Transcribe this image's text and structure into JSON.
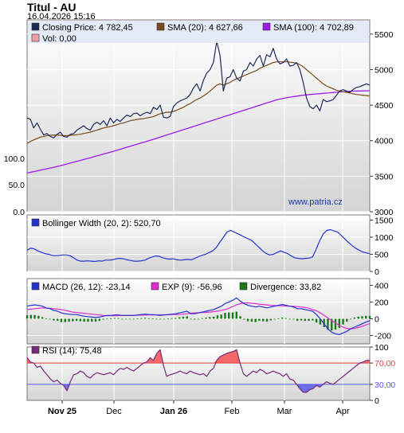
{
  "title": "Titul - AU",
  "timestamp": "16.04.2026 15:16",
  "watermark": "www.patria.cz",
  "colors": {
    "close": "#1a2a5a",
    "sma20": "#7a4a1a",
    "sma100": "#9b1ce8",
    "bollinger": "#2233cc",
    "macd": "#2233cc",
    "exp": "#e02ccf",
    "divergence": "#1a7a1a",
    "rsi": "#7a2a7a",
    "rsi_upper_fill": "#f05050",
    "rsi_lower_fill": "#5a5aee"
  },
  "chart_data": [
    {
      "type": "line",
      "name": "price",
      "x_labels": [
        "Nov 25",
        "Dec",
        "Jan 26",
        "Feb",
        "Mar",
        "Apr"
      ],
      "y_right_ticks": [
        "3000",
        "3500",
        "4000",
        "4500",
        "5000",
        "5500"
      ],
      "y_left_ticks": [
        "0.0",
        "50.0",
        "100.0"
      ],
      "ylim": [
        3000,
        5700
      ],
      "legend": {
        "close": "Closing Price: 4 782,45",
        "sma20": "SMA (20): 4 627,66",
        "sma100": "SMA (100): 4 702,89",
        "vol": "Vol: 0,00"
      },
      "series": [
        {
          "name": "Closing Price",
          "values": [
            4320,
            4300,
            4180,
            4250,
            4160,
            4080,
            4100,
            4060,
            4040,
            4090,
            4120,
            4060,
            4050,
            4090,
            4100,
            4150,
            4180,
            4210,
            4170,
            4150,
            4230,
            4260,
            4230,
            4280,
            4210,
            4320,
            4250,
            4300,
            4270,
            4320,
            4360,
            4340,
            4380,
            4390,
            4350,
            4380,
            4400,
            4380,
            4470,
            4440,
            4500,
            4330,
            4320,
            4340,
            4480,
            4530,
            4560,
            4580,
            4600,
            4650,
            4740,
            4800,
            4700,
            4850,
            4950,
            5000,
            5100,
            5400,
            5200,
            4700,
            4880,
            4900,
            5000,
            4880,
            4840,
            4980,
            5000,
            5100,
            5050,
            5150,
            5200,
            5050,
            5210,
            5180,
            5300,
            5150,
            5080,
            5100,
            5150,
            5050,
            5060,
            5100,
            5000,
            4820,
            4600,
            4480,
            4450,
            4500,
            4420,
            4580,
            4550,
            4560,
            4580,
            4640,
            4700,
            4720,
            4700,
            4680,
            4720,
            4750,
            4760,
            4780,
            4800,
            4782
          ]
        },
        {
          "name": "SMA (20)",
          "values": [
            3960,
            3990,
            4010,
            4030,
            4050,
            4060,
            4070,
            4075,
            4080,
            4080,
            4075,
            4070,
            4070,
            4075,
            4080,
            4085,
            4090,
            4100,
            4110,
            4120,
            4135,
            4150,
            4165,
            4180,
            4190,
            4200,
            4210,
            4225,
            4240,
            4250,
            4265,
            4280,
            4290,
            4300,
            4305,
            4310,
            4320,
            4330,
            4340,
            4360,
            4380,
            4390,
            4400,
            4400,
            4410,
            4430,
            4450,
            4470,
            4500,
            4520,
            4550,
            4580,
            4600,
            4630,
            4660,
            4700,
            4740,
            4780,
            4800,
            4780,
            4800,
            4820,
            4850,
            4870,
            4890,
            4910,
            4930,
            4950,
            4970,
            4990,
            5020,
            5040,
            5060,
            5080,
            5100,
            5110,
            5110,
            5110,
            5110,
            5105,
            5100,
            5090,
            5070,
            5040,
            5000,
            4960,
            4920,
            4880,
            4840,
            4800,
            4770,
            4750,
            4730,
            4710,
            4700,
            4690,
            4680,
            4670,
            4660,
            4650,
            4645,
            4640,
            4635,
            4628
          ]
        },
        {
          "name": "SMA (100)",
          "values": [
            3545,
            3555,
            3565,
            3575,
            3585,
            3595,
            3605,
            3615,
            3625,
            3635,
            3648,
            3660,
            3672,
            3685,
            3698,
            3710,
            3722,
            3735,
            3748,
            3760,
            3773,
            3786,
            3799,
            3812,
            3825,
            3838,
            3852,
            3866,
            3880,
            3894,
            3908,
            3922,
            3936,
            3950,
            3964,
            3978,
            3992,
            4006,
            4020,
            4035,
            4050,
            4065,
            4080,
            4095,
            4110,
            4125,
            4140,
            4155,
            4170,
            4185,
            4200,
            4215,
            4230,
            4245,
            4260,
            4275,
            4290,
            4305,
            4320,
            4335,
            4350,
            4365,
            4380,
            4395,
            4410,
            4425,
            4440,
            4455,
            4470,
            4485,
            4500,
            4515,
            4530,
            4545,
            4560,
            4575,
            4585,
            4595,
            4605,
            4612,
            4620,
            4627,
            4634,
            4640,
            4645,
            4650,
            4654,
            4658,
            4662,
            4666,
            4670,
            4674,
            4678,
            4682,
            4686,
            4689,
            4692,
            4695,
            4697,
            4699,
            4700,
            4701,
            4702,
            4703
          ]
        }
      ]
    },
    {
      "type": "line",
      "name": "bollinger",
      "legend": "Bollinger Width (20, 2): 520,70",
      "y_ticks": [
        "0",
        "500",
        "1000",
        "1500"
      ],
      "ylim": [
        0,
        1650
      ],
      "series": [
        {
          "name": "Bollinger Width (20, 2)",
          "values": [
            620,
            680,
            660,
            600,
            560,
            520,
            500,
            470,
            460,
            470,
            480,
            480,
            460,
            400,
            330,
            300,
            300,
            310,
            300,
            290,
            310,
            300,
            330,
            330,
            340,
            370,
            380,
            370,
            340,
            320,
            300,
            300,
            310,
            330,
            380,
            420,
            450,
            440,
            400,
            370,
            360,
            370,
            340,
            330,
            340,
            350,
            340,
            380,
            430,
            470,
            500,
            550,
            600,
            700,
            850,
            1000,
            1150,
            1200,
            1150,
            1100,
            1050,
            1000,
            950,
            900,
            800,
            700,
            600,
            520,
            480,
            500,
            550,
            600,
            560,
            520,
            450,
            400,
            380,
            370,
            380,
            390,
            420,
            650,
            900,
            1100,
            1200,
            1220,
            1180,
            1150,
            1050,
            950,
            850,
            760,
            680,
            620,
            570,
            540,
            520
          ]
        }
      ]
    },
    {
      "type": "line",
      "name": "macd",
      "legend": {
        "macd": "MACD (26, 12): -23,14",
        "exp": "EXP (9): -56,96",
        "div": "Divergence: 33,82"
      },
      "y_ticks": [
        "-200",
        "0",
        "200",
        "400"
      ],
      "ylim": [
        -300,
        480
      ],
      "series": [
        {
          "name": "MACD (26, 12)",
          "values": [
            150,
            160,
            165,
            160,
            150,
            130,
            120,
            100,
            90,
            70,
            60,
            55,
            50,
            50,
            40,
            30,
            25,
            20,
            15,
            20,
            30,
            40,
            40,
            45,
            45,
            40,
            40,
            40,
            40,
            45,
            50,
            55,
            50,
            50,
            45,
            40,
            45,
            50,
            55,
            60,
            70,
            80,
            90,
            60,
            60,
            70,
            80,
            90,
            100,
            110,
            130,
            150,
            180,
            200,
            220,
            250,
            210,
            180,
            160,
            150,
            140,
            150,
            140,
            130,
            140,
            150,
            160,
            170,
            160,
            150,
            140,
            120,
            120,
            110,
            100,
            90,
            50,
            0,
            -60,
            -120,
            -160,
            -180,
            -190,
            -170,
            -150,
            -120,
            -100,
            -80,
            -60,
            -40,
            -23
          ]
        },
        {
          "name": "EXP (9)",
          "values": [
            110,
            115,
            120,
            125,
            130,
            128,
            125,
            120,
            115,
            110,
            100,
            90,
            80,
            75,
            70,
            65,
            60,
            55,
            50,
            45,
            40,
            38,
            37,
            36,
            38,
            40,
            40,
            40,
            41,
            42,
            43,
            44,
            45,
            46,
            47,
            47,
            47,
            48,
            49,
            50,
            52,
            55,
            60,
            65,
            70,
            72,
            74,
            76,
            80,
            85,
            90,
            100,
            110,
            125,
            145,
            165,
            180,
            190,
            190,
            185,
            180,
            175,
            170,
            165,
            160,
            158,
            156,
            155,
            152,
            150,
            148,
            145,
            140,
            135,
            125,
            110,
            95,
            70,
            40,
            10,
            -20,
            -50,
            -80,
            -100,
            -115,
            -120,
            -115,
            -105,
            -90,
            -75,
            -57
          ]
        },
        {
          "name": "Divergence",
          "values": [
            40,
            45,
            45,
            35,
            20,
            2,
            -5,
            -20,
            -25,
            -40,
            -40,
            -35,
            -30,
            -25,
            -30,
            -35,
            -35,
            -35,
            -35,
            -25,
            -10,
            2,
            3,
            9,
            7,
            0,
            0,
            0,
            -1,
            3,
            7,
            11,
            5,
            4,
            -2,
            -7,
            -2,
            2,
            6,
            10,
            18,
            25,
            30,
            -5,
            -10,
            -2,
            6,
            14,
            20,
            25,
            40,
            50,
            70,
            75,
            75,
            85,
            30,
            -10,
            -30,
            -35,
            -40,
            -25,
            -30,
            -35,
            -20,
            -8,
            4,
            15,
            8,
            0,
            -8,
            -25,
            -20,
            -25,
            -25,
            -20,
            -45,
            -70,
            -100,
            -130,
            -140,
            -130,
            -110,
            -70,
            -35,
            0,
            15,
            25,
            30,
            35,
            34
          ]
        }
      ]
    },
    {
      "type": "line",
      "name": "rsi",
      "legend": "RSI (14): 75,48",
      "y_ticks": [
        "0",
        "30,00",
        "70,00",
        "100"
      ],
      "ylim": [
        0,
        100
      ],
      "series": [
        {
          "name": "RSI (14)",
          "values": [
            80,
            72,
            70,
            62,
            64,
            55,
            48,
            40,
            35,
            38,
            32,
            28,
            18,
            35,
            48,
            50,
            55,
            52,
            45,
            42,
            48,
            52,
            50,
            48,
            50,
            52,
            48,
            55,
            60,
            58,
            62,
            58,
            55,
            60,
            65,
            70,
            72,
            80,
            75,
            88,
            95,
            65,
            45,
            48,
            50,
            52,
            55,
            52,
            50,
            55,
            52,
            50,
            48,
            50,
            45,
            55,
            60,
            75,
            82,
            85,
            88,
            90,
            92,
            95,
            70,
            50,
            45,
            50,
            55,
            52,
            58,
            55,
            50,
            52,
            55,
            52,
            50,
            45,
            50,
            40,
            38,
            30,
            22,
            15,
            15,
            20,
            22,
            28,
            25,
            30,
            35,
            32,
            30,
            35,
            40,
            45,
            50,
            55,
            60,
            65,
            70,
            72,
            75,
            75
          ]
        }
      ]
    }
  ]
}
